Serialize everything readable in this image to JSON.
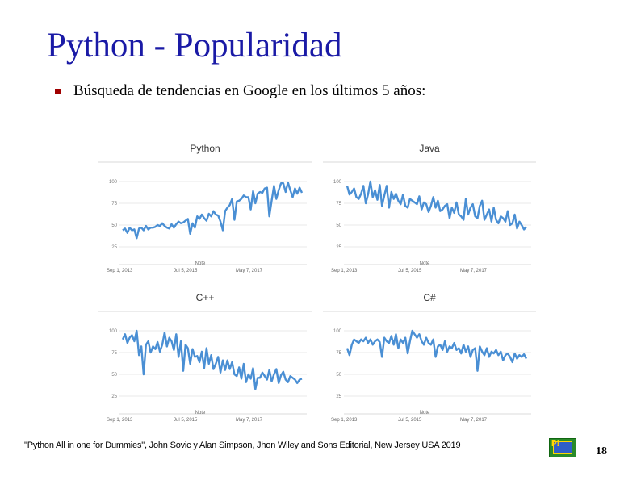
{
  "slide": {
    "title": "Python - Popularidad",
    "bullet": "Búsqueda de tendencias en Google en los últimos 5 años:",
    "citation": "\"Python All in one for Dummies\", John Sovic y Alan Simpson, Jhon Wiley and Sons Editorial, New Jersey USA 2019",
    "page_number": "18",
    "logo_icon": "publisher-logo-icon",
    "logo_colors": {
      "frame": "#2a8a2a",
      "inner": "#2f5ec9",
      "accent": "#ffd400"
    }
  },
  "chart_data": [
    {
      "type": "line",
      "title": "Python",
      "color": "#4a8fd4",
      "y_ticks": [
        "100",
        "75",
        "50",
        "25"
      ],
      "ylim": [
        0,
        100
      ],
      "x_ticks": [
        "Sep 1, 2013",
        "Jul 5, 2015",
        "May 7, 2017"
      ],
      "note": "Note",
      "values": [
        44,
        46,
        41,
        47,
        44,
        45,
        35,
        46,
        47,
        44,
        49,
        45,
        47,
        47,
        48,
        50,
        49,
        52,
        49,
        47,
        46,
        51,
        47,
        51,
        54,
        52,
        53,
        55,
        57,
        40,
        52,
        47,
        60,
        57,
        62,
        58,
        55,
        63,
        60,
        66,
        62,
        61,
        54,
        44,
        66,
        70,
        73,
        80,
        56,
        77,
        78,
        80,
        84,
        82,
        82,
        68,
        89,
        75,
        86,
        88,
        87,
        92,
        93,
        60,
        78,
        95,
        80,
        90,
        98,
        98,
        88,
        99,
        90,
        82,
        92,
        86,
        93,
        87
      ]
    },
    {
      "type": "line",
      "title": "Java",
      "color": "#4a8fd4",
      "y_ticks": [
        "100",
        "75",
        "50",
        "25"
      ],
      "ylim": [
        0,
        100
      ],
      "x_ticks": [
        "Sep 1, 2013",
        "Jul 5, 2015",
        "May 7, 2017"
      ],
      "note": "Note",
      "values": [
        95,
        85,
        88,
        92,
        82,
        80,
        86,
        95,
        75,
        85,
        100,
        82,
        90,
        79,
        96,
        72,
        84,
        95,
        70,
        88,
        80,
        86,
        78,
        74,
        85,
        72,
        70,
        80,
        78,
        76,
        74,
        83,
        68,
        76,
        74,
        65,
        72,
        82,
        70,
        78,
        66,
        68,
        72,
        74,
        58,
        70,
        64,
        76,
        62,
        60,
        56,
        80,
        62,
        70,
        74,
        60,
        58,
        72,
        78,
        56,
        62,
        68,
        54,
        70,
        56,
        52,
        60,
        58,
        54,
        66,
        50,
        52,
        62,
        46,
        54,
        50,
        45,
        48
      ]
    },
    {
      "type": "line",
      "title": "C++",
      "color": "#4a8fd4",
      "y_ticks": [
        "100",
        "75",
        "50",
        "25"
      ],
      "ylim": [
        0,
        100
      ],
      "x_ticks": [
        "Sep 1, 2013",
        "Jul 5, 2015",
        "May 7, 2017"
      ],
      "note": "Note",
      "values": [
        90,
        96,
        86,
        92,
        95,
        88,
        100,
        72,
        82,
        50,
        84,
        88,
        75,
        82,
        79,
        87,
        76,
        84,
        98,
        82,
        92,
        88,
        78,
        96,
        70,
        88,
        54,
        84,
        80,
        62,
        79,
        70,
        71,
        64,
        76,
        57,
        80,
        62,
        72,
        56,
        62,
        70,
        52,
        66,
        55,
        66,
        56,
        64,
        50,
        48,
        58,
        45,
        62,
        41,
        50,
        45,
        57,
        33,
        46,
        46,
        52,
        48,
        44,
        55,
        42,
        50,
        56,
        40,
        49,
        53,
        44,
        41,
        48,
        46,
        44,
        40,
        44,
        45
      ]
    },
    {
      "type": "line",
      "title": "C#",
      "color": "#4a8fd4",
      "y_ticks": [
        "100",
        "75",
        "50",
        "25"
      ],
      "ylim": [
        0,
        100
      ],
      "x_ticks": [
        "Sep 1, 2013",
        "Jul 5, 2015",
        "May 7, 2017"
      ],
      "note": "Note",
      "values": [
        80,
        72,
        84,
        90,
        88,
        86,
        90,
        88,
        92,
        86,
        90,
        84,
        88,
        90,
        87,
        70,
        92,
        88,
        86,
        94,
        84,
        96,
        80,
        90,
        86,
        92,
        74,
        88,
        100,
        96,
        92,
        96,
        88,
        84,
        92,
        86,
        84,
        90,
        70,
        82,
        84,
        78,
        88,
        76,
        82,
        80,
        86,
        78,
        80,
        74,
        84,
        76,
        82,
        70,
        78,
        80,
        54,
        82,
        76,
        72,
        80,
        70,
        76,
        74,
        78,
        72,
        76,
        66,
        72,
        74,
        70,
        64,
        74,
        68,
        72,
        70,
        73,
        68
      ]
    }
  ]
}
